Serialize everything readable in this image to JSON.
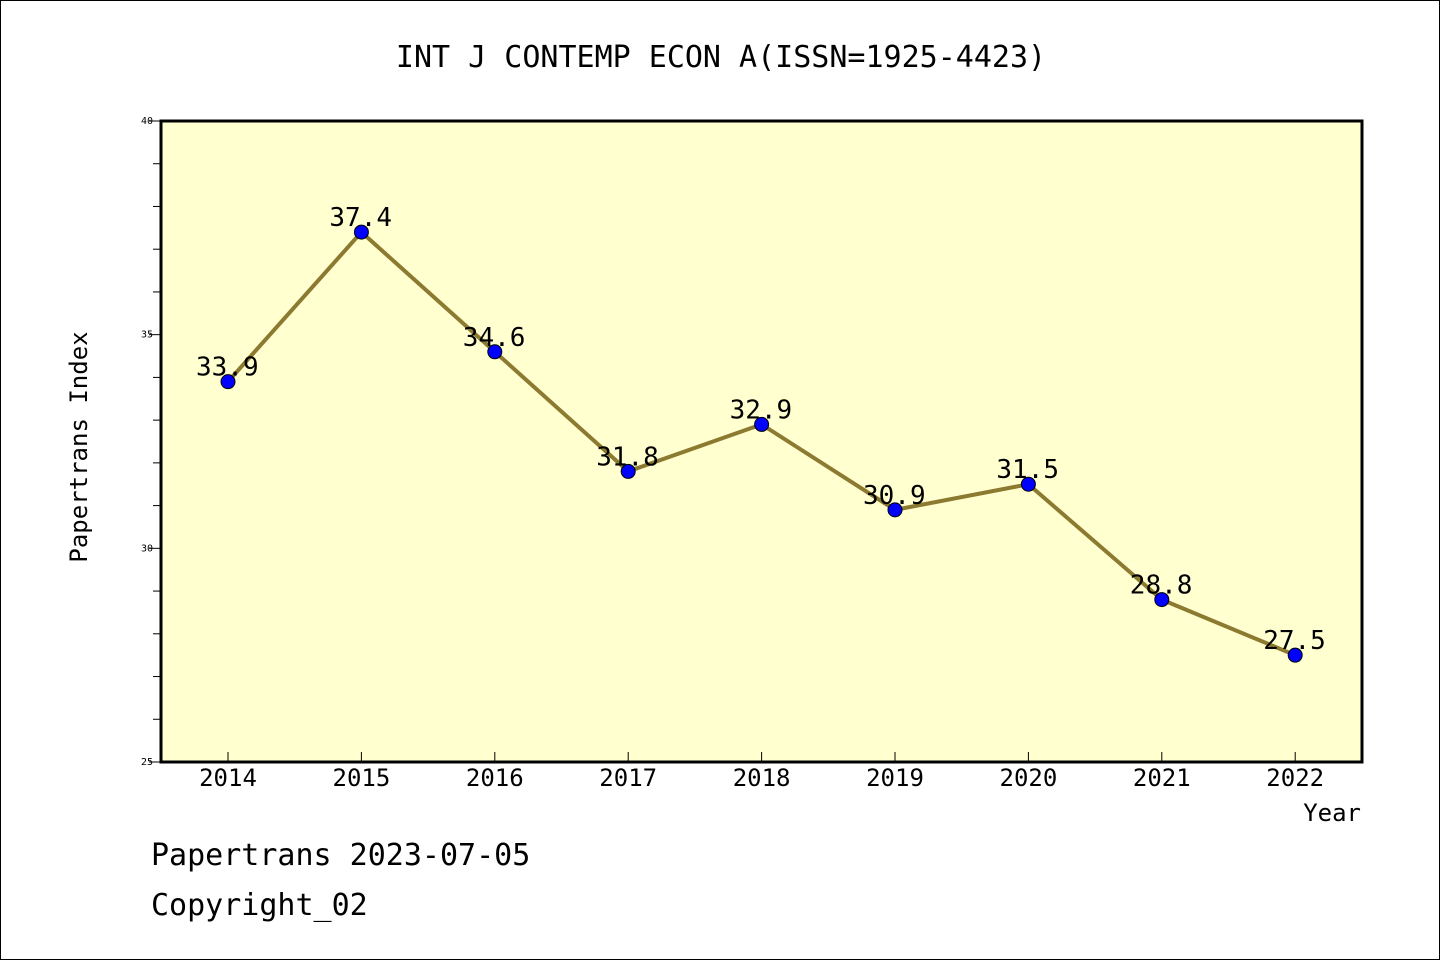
{
  "chart_data": {
    "type": "line",
    "title": "INT J CONTEMP ECON A(ISSN=1925-4423)",
    "xlabel": "Year",
    "ylabel": "Papertrans Index",
    "categories": [
      "2014",
      "2015",
      "2016",
      "2017",
      "2018",
      "2019",
      "2020",
      "2021",
      "2022"
    ],
    "series": [
      {
        "values": [
          33.9,
          37.4,
          34.6,
          31.8,
          32.9,
          30.9,
          31.5,
          28.8,
          27.5
        ],
        "labels": [
          "33.9",
          "37.4",
          "34.6",
          "31.8",
          "32.9",
          "30.9",
          "31.5",
          "28.8",
          "27.5"
        ]
      }
    ],
    "ylim": [
      25,
      40
    ],
    "yticks": [
      "25",
      "30",
      "35",
      "40"
    ],
    "grid": false,
    "colors": {
      "plot_bg": "#FFFFD0",
      "line": "#8C7A30",
      "marker": "#0000FF"
    }
  },
  "footer": {
    "line1": "Papertrans 2023-07-05",
    "line2": "Copyright_02"
  }
}
